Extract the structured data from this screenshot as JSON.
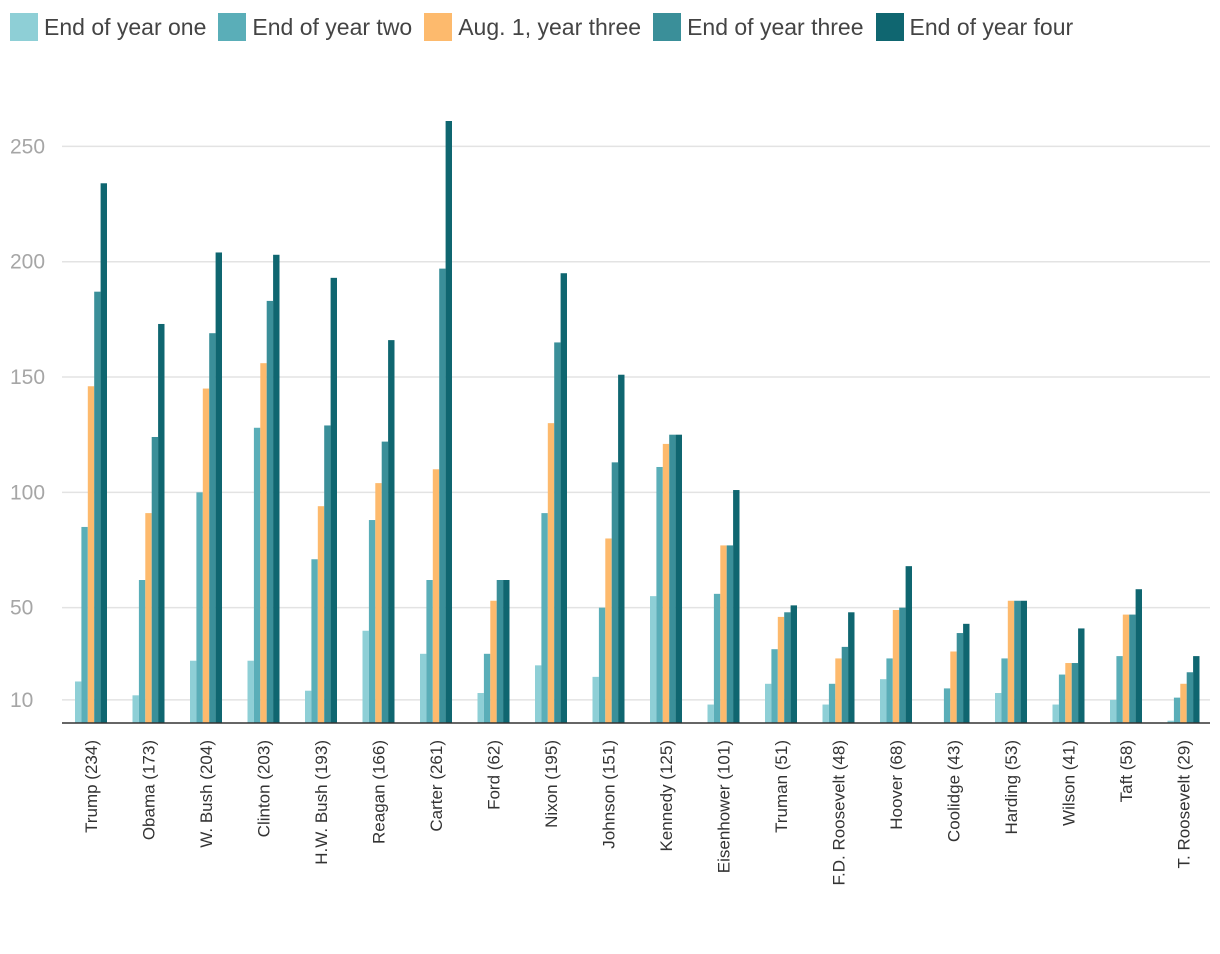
{
  "chart_data": {
    "type": "bar",
    "title": "",
    "xlabel": "",
    "ylabel": "",
    "ylim": [
      0,
      261
    ],
    "yticks": [
      10,
      50,
      100,
      150,
      200,
      250
    ],
    "grid": true,
    "legend_position": "top-left",
    "categories": [
      "Trump (234)",
      "Obama (173)",
      "W. Bush (204)",
      "Clinton (203)",
      "H.W. Bush (193)",
      "Reagan (166)",
      "Carter (261)",
      "Ford (62)",
      "Nixon (195)",
      "Johnson (151)",
      "Kennedy (125)",
      "Eisenhower (101)",
      "Truman (51)",
      "F.D. Roosevelt (48)",
      "Hoover (68)",
      "Coolidge (43)",
      "Harding (53)",
      "Wilson (41)",
      "Taft (58)",
      "T. Roosevelt (29)"
    ],
    "series": [
      {
        "name": "End of year one",
        "color": "#8ecfd6",
        "values": [
          18,
          12,
          27,
          27,
          14,
          40,
          30,
          13,
          25,
          20,
          55,
          8,
          17,
          8,
          19,
          0,
          13,
          8,
          10,
          1
        ]
      },
      {
        "name": "End of year two",
        "color": "#5aaeb8",
        "values": [
          85,
          62,
          100,
          128,
          71,
          88,
          62,
          30,
          91,
          50,
          111,
          56,
          32,
          17,
          28,
          15,
          28,
          21,
          29,
          11
        ]
      },
      {
        "name": "Aug. 1, year three",
        "color": "#fdba6d",
        "values": [
          146,
          91,
          145,
          156,
          94,
          104,
          110,
          53,
          130,
          80,
          121,
          77,
          46,
          28,
          49,
          31,
          53,
          26,
          47,
          17
        ]
      },
      {
        "name": "End of year three",
        "color": "#3a8f99",
        "values": [
          187,
          124,
          169,
          183,
          129,
          122,
          197,
          62,
          165,
          113,
          125,
          77,
          48,
          33,
          50,
          39,
          53,
          26,
          47,
          22
        ]
      },
      {
        "name": "End of year four",
        "color": "#0f6670",
        "values": [
          234,
          173,
          204,
          203,
          193,
          166,
          261,
          62,
          195,
          151,
          125,
          101,
          51,
          48,
          68,
          43,
          53,
          41,
          58,
          29
        ]
      }
    ]
  }
}
